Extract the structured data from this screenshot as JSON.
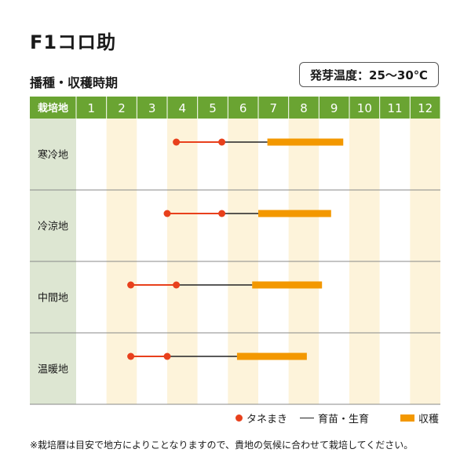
{
  "title": "F1コロ助",
  "subtitle": "播種・収穫時期",
  "temperature_label": "発芽温度：25～30℃",
  "chart_data": {
    "type": "gantt",
    "corner_label": "栽培地",
    "months": [
      "1",
      "2",
      "3",
      "4",
      "5",
      "6",
      "7",
      "8",
      "9",
      "10",
      "11",
      "12"
    ],
    "regions": [
      {
        "name": "寒冷地",
        "sowing": [
          4.3,
          5.8
        ],
        "seedling": [
          5.8,
          7.3
        ],
        "harvest": [
          7.3,
          9.8
        ]
      },
      {
        "name": "冷涼地",
        "sowing": [
          4.0,
          5.8
        ],
        "seedling": [
          5.8,
          7.0
        ],
        "harvest": [
          7.0,
          9.4
        ]
      },
      {
        "name": "中間地",
        "sowing": [
          2.8,
          4.3
        ],
        "seedling": [
          4.3,
          6.8
        ],
        "harvest": [
          6.8,
          9.1
        ]
      },
      {
        "name": "温暖地",
        "sowing": [
          2.8,
          4.0
        ],
        "seedling": [
          4.0,
          6.3
        ],
        "harvest": [
          6.3,
          8.6
        ]
      }
    ],
    "colors": {
      "header": "#6aa432",
      "label_bg": "#dde6d2",
      "odd_col": "#ffffff",
      "even_col": "#fdf3da",
      "sowing": "#e8401c",
      "seedling": "#222222",
      "harvest": "#f39800"
    }
  },
  "legend": {
    "sowing": "タネまき",
    "seedling": "育苗・生育",
    "harvest": "収穫"
  },
  "note": "※栽培暦は目安で地方によりことなりますので、貴地の気候に合わせて栽培してください。"
}
